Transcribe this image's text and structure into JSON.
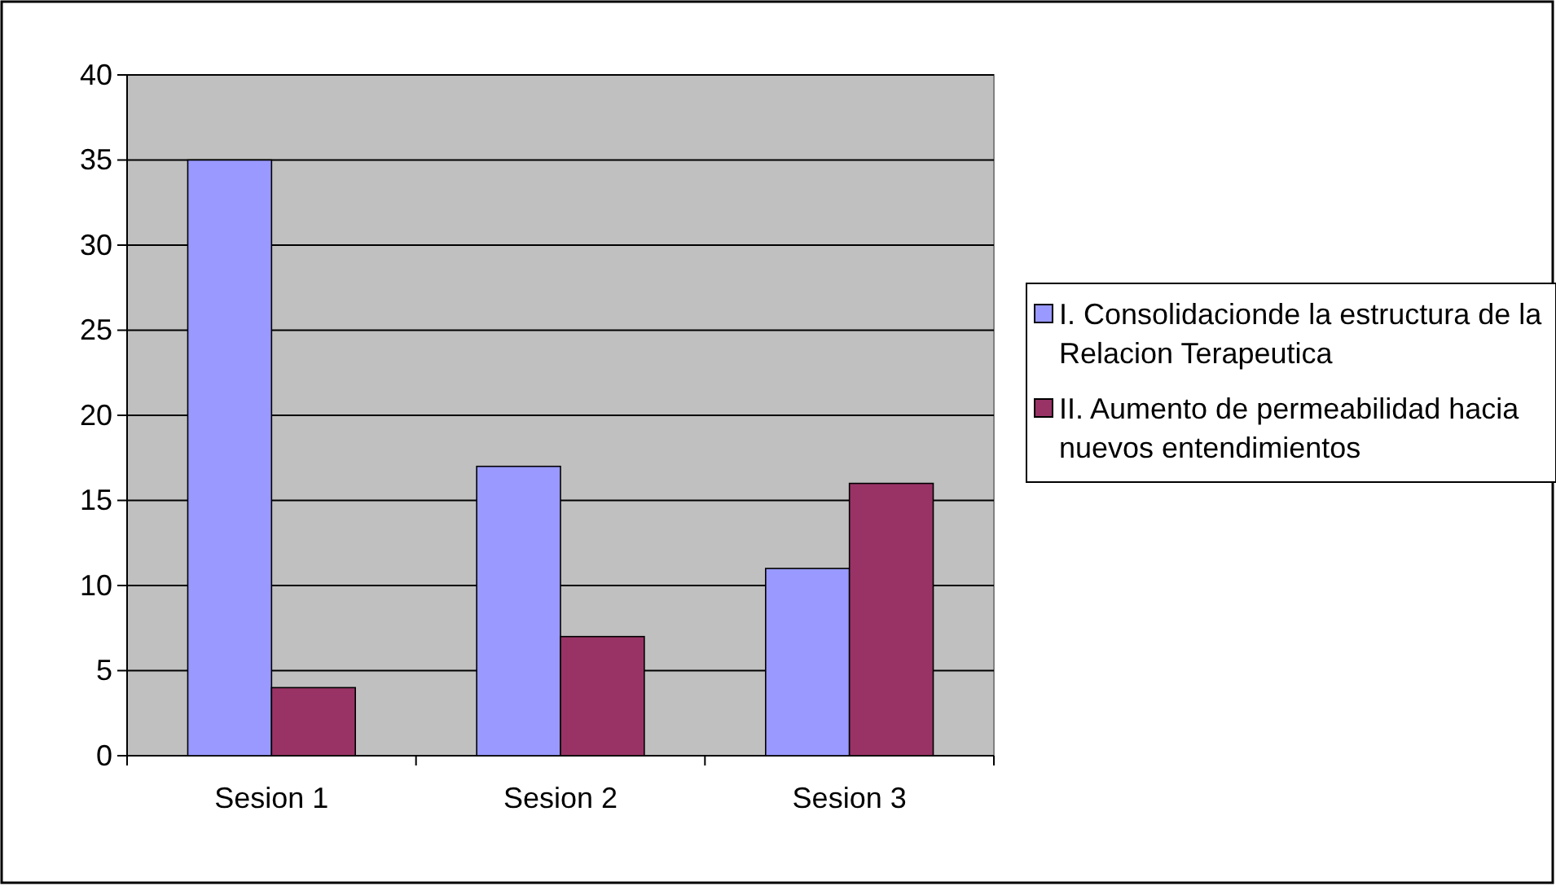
{
  "chart_data": {
    "type": "bar",
    "categories": [
      "Sesion 1",
      "Sesion 2",
      "Sesion 3"
    ],
    "series": [
      {
        "name": "I. Consolidacionde la estructura de la Relacion Terapeutica",
        "color": "#9999ff",
        "values": [
          35,
          17,
          11
        ]
      },
      {
        "name": "II. Aumento de permeabilidad hacia nuevos entendimientos",
        "color": "#993366",
        "values": [
          4,
          7,
          16
        ]
      }
    ],
    "ylim": [
      0,
      40
    ],
    "yticks": [
      0,
      5,
      10,
      15,
      20,
      25,
      30,
      35,
      40
    ],
    "grid": "y",
    "legend": "right"
  }
}
